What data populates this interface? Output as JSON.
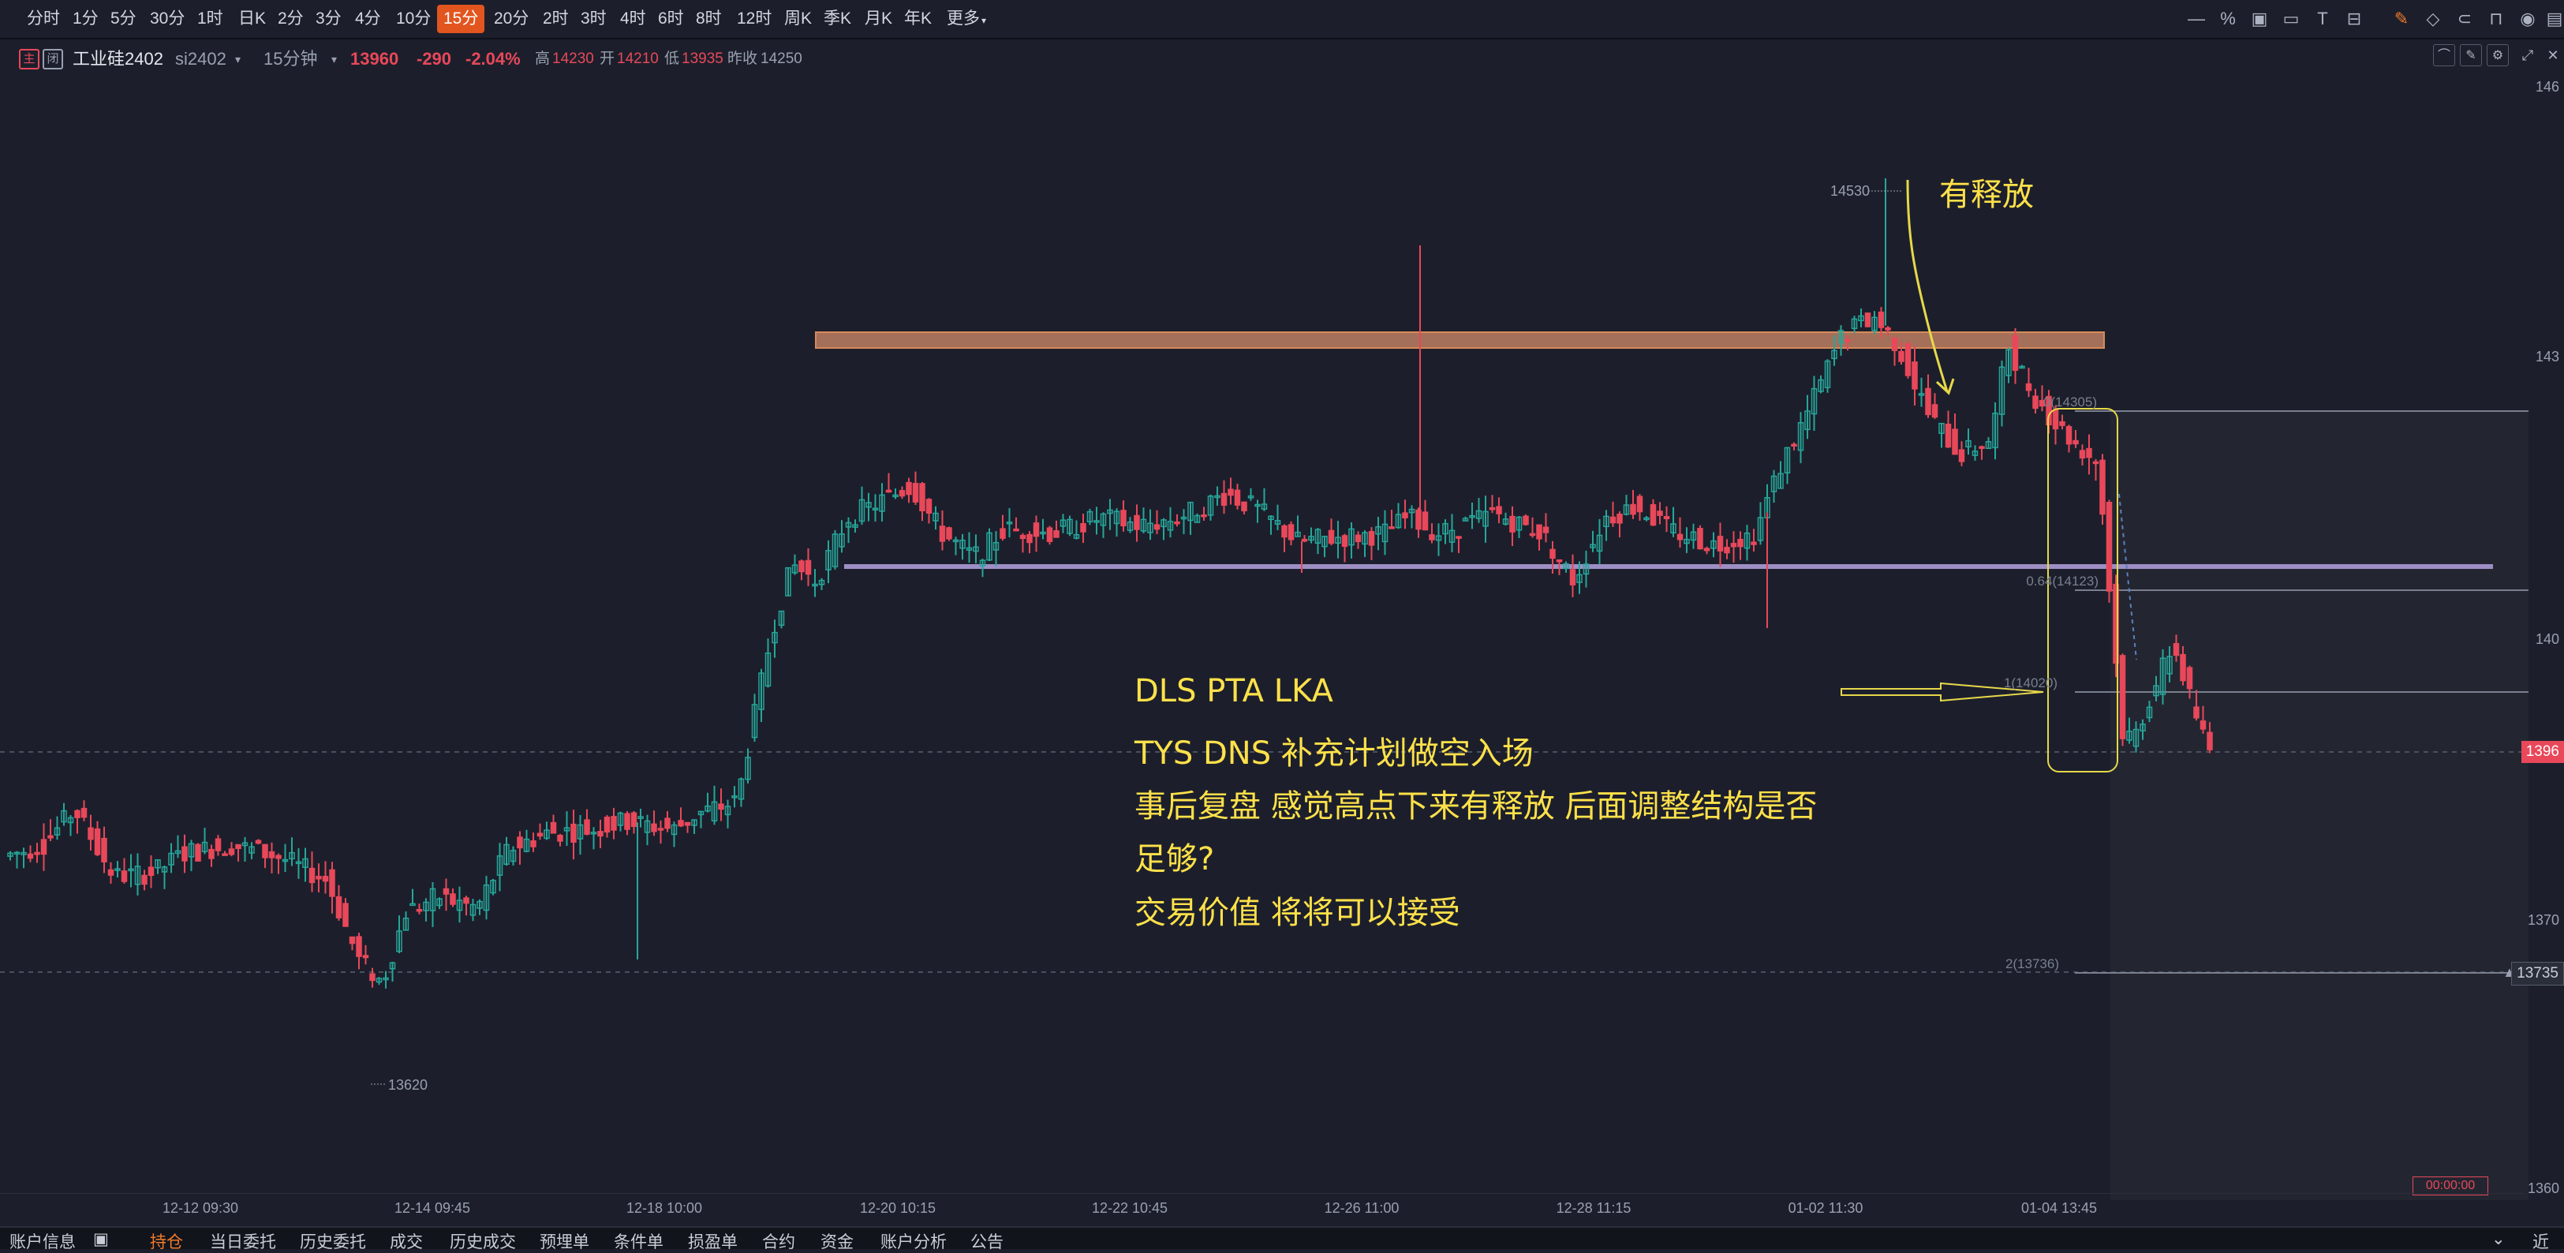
{
  "toolbar": {
    "timeframes": [
      "分时",
      "1分",
      "5分",
      "30分",
      "1时",
      "日K",
      "2分",
      "3分",
      "4分",
      "10分",
      "15分",
      "20分",
      "2时",
      "3时",
      "4时",
      "6时",
      "8时",
      "12时",
      "周K",
      "季K",
      "月K",
      "年K",
      "更多"
    ],
    "active": "15分"
  },
  "instrument": {
    "tag1": "主",
    "tag2": "闭",
    "name": "工业硅2402",
    "code": "si2402",
    "period": "15分钟",
    "last": "13960",
    "change": "-290",
    "change_pct": "-2.04%",
    "high_label": "高",
    "high": "14230",
    "open_label": "开",
    "open": "14210",
    "low_label": "低",
    "low": "13935",
    "prev_label": "昨收",
    "prev": "14250"
  },
  "chart_data": {
    "type": "candlestick",
    "x_ticks": [
      "12-12 09:30",
      "12-14 09:45",
      "12-18 10:00",
      "12-20 10:15",
      "12-22 10:45",
      "12-26 11:00",
      "12-28 11:15",
      "01-02 11:30",
      "01-04 13:45"
    ],
    "y_ticks": [
      "146",
      "143",
      "140",
      "1370",
      "1360"
    ],
    "price_tag_current": "1396",
    "price_tag_level": "13735",
    "label_high": "14530",
    "label_low": "13620",
    "fib_levels": [
      {
        "label": "0(14305)"
      },
      {
        "label": "0.64(14123)"
      },
      {
        "label": "1(14020)"
      },
      {
        "label": "2(13736)"
      }
    ]
  },
  "annotations": {
    "release": "有释放",
    "line1": "DLS PTA  LKA",
    "line2": "TYS DNS 补充计划做空入场",
    "line3": "事后复盘  感觉高点下来有释放 后面调整结构是否",
    "line4": "足够?",
    "line5": "交易价值 将将可以接受"
  },
  "timer": "00:00:00",
  "bottom": {
    "title": "账户信息",
    "tabs": [
      "持仓",
      "当日委托",
      "历史委托",
      "成交",
      "历史成交",
      "预埋单",
      "条件单",
      "损盈单",
      "合约",
      "资金",
      "账户分析",
      "公告"
    ],
    "active": "持仓",
    "right": "近"
  },
  "colors": {
    "up": "#26a69a",
    "down": "#e8485a",
    "accent": "#f07a2a",
    "annotation": "#ffe14a"
  }
}
